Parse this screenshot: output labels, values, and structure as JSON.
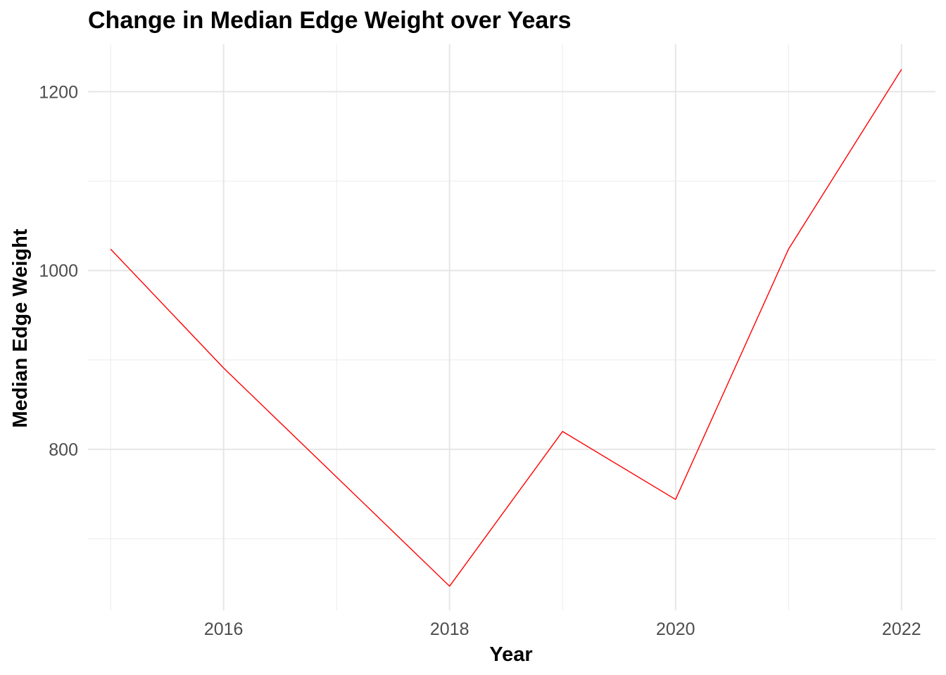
{
  "chart_data": {
    "type": "line",
    "title": "Change in Median Edge Weight over Years",
    "xlabel": "Year",
    "ylabel": "Median Edge Weight",
    "x": [
      2015,
      2016,
      2017,
      2018,
      2019,
      2020,
      2021,
      2022
    ],
    "series": [
      {
        "values": [
          1024,
          891,
          769,
          647,
          820,
          744,
          1024,
          1225
        ],
        "color": "#ff0000"
      }
    ],
    "xlim": [
      2014.8,
      2022.3
    ],
    "ylim": [
      620,
      1253
    ],
    "x_ticks": [
      2016,
      2018,
      2020,
      2022
    ],
    "x_tick_labels": [
      "2016",
      "2018",
      "2020",
      "2022"
    ],
    "y_ticks": [
      800,
      1000,
      1200
    ],
    "y_tick_labels": [
      "800",
      "1000",
      "1200"
    ],
    "x_minor_ticks": [
      2015,
      2017,
      2019,
      2021
    ],
    "y_minor_ticks": [
      700,
      900,
      1100
    ],
    "grid": true,
    "legend": "none",
    "theme": "minimal"
  }
}
